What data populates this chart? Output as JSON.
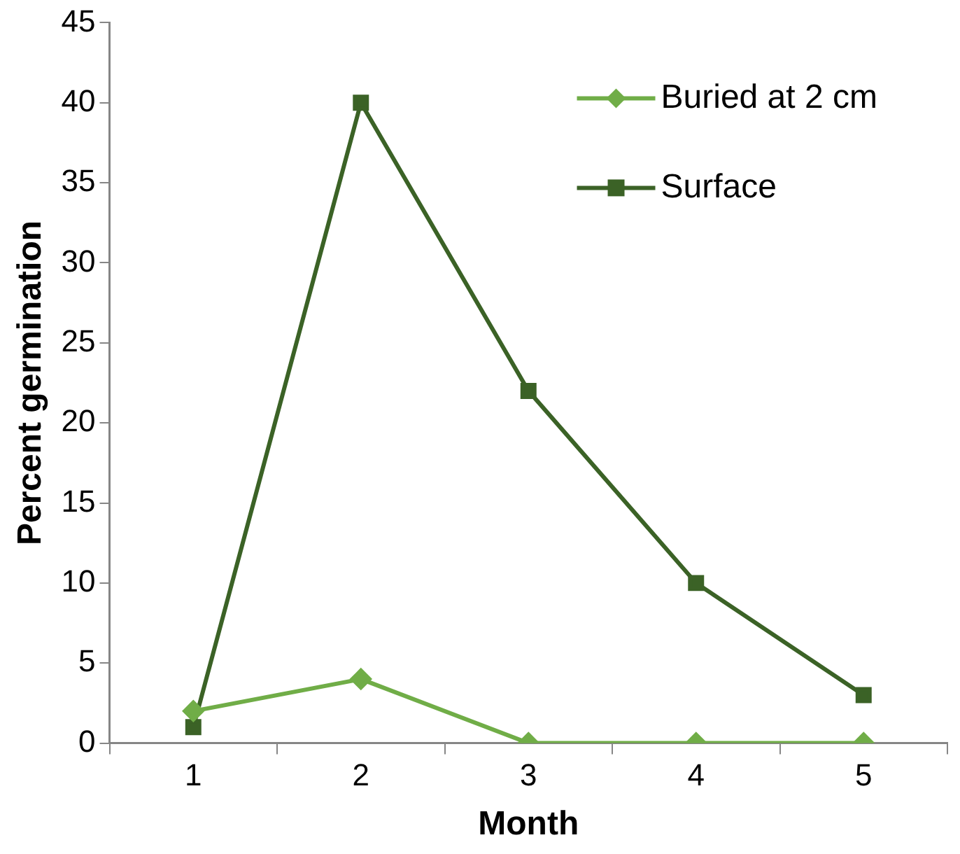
{
  "chart_data": {
    "type": "line",
    "xlabel": "Month",
    "ylabel": "Percent germination",
    "categories": [
      "1",
      "2",
      "3",
      "4",
      "5"
    ],
    "series": [
      {
        "name": "Buried at 2 cm",
        "color": "#70ad47",
        "marker": "diamond",
        "values": [
          2,
          4,
          0,
          0,
          0
        ]
      },
      {
        "name": "Surface",
        "color": "#3b6226",
        "marker": "square",
        "values": [
          1,
          40,
          22,
          10,
          3
        ]
      }
    ],
    "ylim": [
      0,
      45
    ],
    "yticks": [
      0,
      5,
      10,
      15,
      20,
      25,
      30,
      35,
      40,
      45
    ],
    "grid": false,
    "legend": "top right",
    "line_style": "solid"
  }
}
